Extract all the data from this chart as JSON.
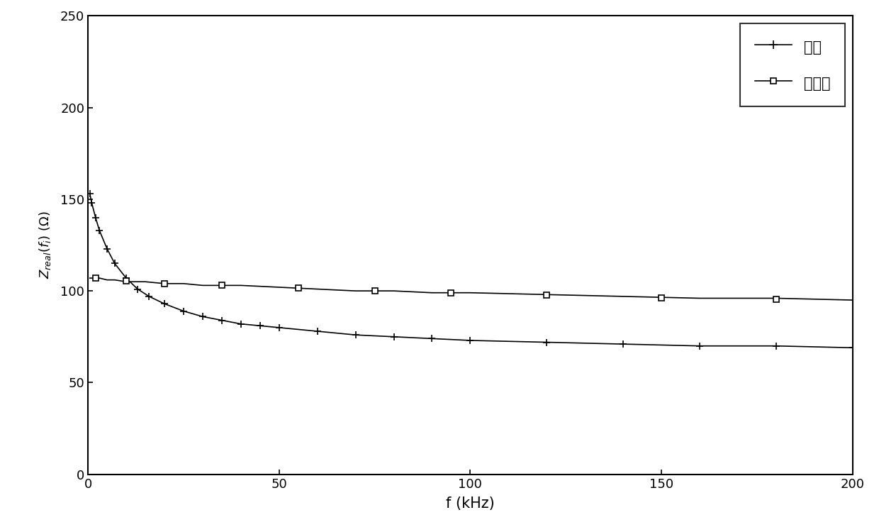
{
  "xlabel": "f (kHz)",
  "xlim": [
    0,
    200
  ],
  "ylim": [
    0,
    250
  ],
  "yticks": [
    0,
    50,
    100,
    150,
    200,
    250
  ],
  "xticks": [
    0,
    50,
    100,
    150,
    200
  ],
  "fresh_meat_label": "鲜肉",
  "thawed_meat_label": "解冻肉",
  "line_color": "#000000",
  "background_color": "#ffffff",
  "fresh_x": [
    0.5,
    1,
    2,
    3,
    5,
    7,
    10,
    13,
    16,
    20,
    25,
    30,
    35,
    40,
    45,
    50,
    60,
    70,
    80,
    90,
    100,
    120,
    140,
    160,
    180,
    200
  ],
  "fresh_y": [
    153,
    148,
    140,
    133,
    123,
    115,
    107,
    101,
    97,
    93,
    89,
    86,
    84,
    82,
    81,
    80,
    78,
    76,
    75,
    74,
    73,
    72,
    71,
    70,
    70,
    69
  ],
  "thawed_x": [
    0.5,
    1,
    2,
    3,
    5,
    7,
    10,
    15,
    20,
    25,
    30,
    35,
    40,
    50,
    60,
    70,
    80,
    90,
    100,
    120,
    140,
    160,
    180,
    200
  ],
  "thawed_y": [
    107,
    107,
    107,
    107,
    106,
    106,
    105,
    105,
    104,
    104,
    103,
    103,
    103,
    102,
    101,
    100,
    100,
    99,
    99,
    98,
    97,
    96,
    96,
    95
  ],
  "thawed_marker_x": [
    2,
    10,
    20,
    35,
    55,
    75,
    95,
    120,
    150,
    180
  ],
  "thawed_marker_y": [
    107,
    105.5,
    104,
    103,
    101.5,
    100,
    99,
    97.8,
    96.3,
    95.5
  ]
}
